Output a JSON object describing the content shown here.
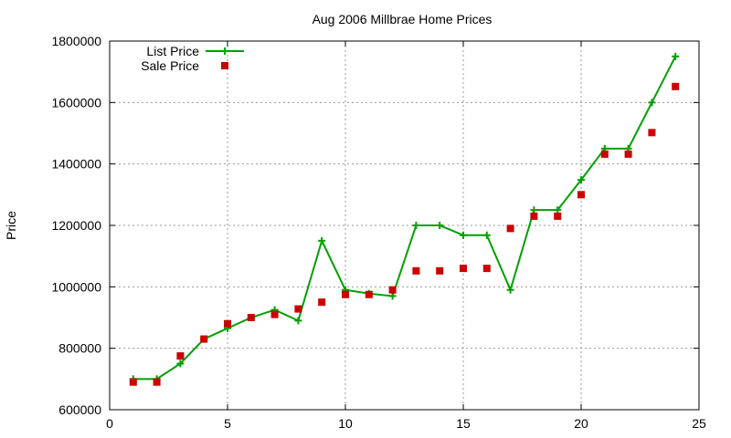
{
  "chart_data": {
    "type": "line",
    "title": "Aug 2006 Millbrae Home Prices",
    "xlabel": "",
    "ylabel": "Price",
    "xlim": [
      0,
      25
    ],
    "ylim": [
      600000,
      1800000
    ],
    "x_ticks": [
      0,
      5,
      10,
      15,
      20,
      25
    ],
    "y_ticks": [
      600000,
      800000,
      1000000,
      1200000,
      1400000,
      1600000,
      1800000
    ],
    "grid": true,
    "legend_position": "top-left",
    "series": [
      {
        "name": "List Price",
        "style": "line-with-plus-markers",
        "color": "#00a000",
        "x": [
          1,
          2,
          3,
          4,
          5,
          6,
          7,
          8,
          9,
          10,
          11,
          12,
          13,
          14,
          15,
          16,
          17,
          18,
          19,
          20,
          21,
          22,
          23,
          24
        ],
        "values": [
          700000,
          700000,
          750000,
          830000,
          865000,
          900000,
          925000,
          890000,
          1150000,
          990000,
          978000,
          970000,
          1200000,
          1200000,
          1168000,
          1168000,
          990000,
          1250000,
          1250000,
          1348000,
          1450000,
          1450000,
          1600000,
          1750000
        ]
      },
      {
        "name": "Sale Price",
        "style": "square-markers",
        "color": "#cc0000",
        "x": [
          1,
          2,
          3,
          4,
          5,
          6,
          7,
          8,
          9,
          10,
          11,
          12,
          13,
          14,
          15,
          16,
          17,
          18,
          19,
          20,
          21,
          22,
          23,
          24
        ],
        "values": [
          690000,
          690000,
          775000,
          830000,
          880000,
          900000,
          910000,
          928000,
          950000,
          975000,
          975000,
          990000,
          1052000,
          1052000,
          1060000,
          1060000,
          1190000,
          1230000,
          1230000,
          1300000,
          1432000,
          1432000,
          1502000,
          1652000
        ]
      }
    ]
  }
}
